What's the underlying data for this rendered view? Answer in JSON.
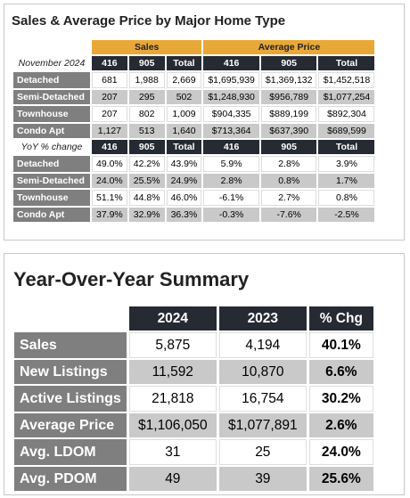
{
  "top": {
    "title": "Sales & Average Price by Major Home Type",
    "groups": [
      "Sales",
      "Average Price"
    ],
    "sections": [
      {
        "label": "November 2024",
        "columns": [
          "416",
          "905",
          "Total",
          "416",
          "905",
          "Total"
        ],
        "rows": [
          {
            "label": "Detached",
            "cells": [
              "681",
              "1,988",
              "2,669",
              "$1,695,939",
              "$1,369,132",
              "$1,452,518"
            ]
          },
          {
            "label": "Semi-Detached",
            "cells": [
              "207",
              "295",
              "502",
              "$1,248,930",
              "$956,789",
              "$1,077,254"
            ]
          },
          {
            "label": "Townhouse",
            "cells": [
              "207",
              "802",
              "1,009",
              "$904,335",
              "$889,199",
              "$892,304"
            ]
          },
          {
            "label": "Condo Apt",
            "cells": [
              "1,127",
              "513",
              "1,640",
              "$713,364",
              "$637,390",
              "$689,599"
            ]
          }
        ]
      },
      {
        "label": "YoY % change",
        "columns": [
          "416",
          "905",
          "Total",
          "416",
          "905",
          "Total"
        ],
        "rows": [
          {
            "label": "Detached",
            "cells": [
              "49.0%",
              "42.2%",
              "43.9%",
              "5.9%",
              "2.8%",
              "3.9%"
            ]
          },
          {
            "label": "Semi-Detached",
            "cells": [
              "24.0%",
              "25.5%",
              "24.9%",
              "2.8%",
              "0.8%",
              "1.7%"
            ]
          },
          {
            "label": "Townhouse",
            "cells": [
              "51.1%",
              "44.8%",
              "46.0%",
              "-6.1%",
              "2.7%",
              "0.8%"
            ]
          },
          {
            "label": "Condo Apt",
            "cells": [
              "37.9%",
              "32.9%",
              "36.3%",
              "-0.3%",
              "-7.6%",
              "-2.5%"
            ]
          }
        ]
      }
    ]
  },
  "summary": {
    "title": "Year-Over-Year Summary",
    "columns": [
      "2024",
      "2023",
      "% Chg"
    ],
    "rows": [
      {
        "label": "Sales",
        "cells": [
          "5,875",
          "4,194",
          "40.1%"
        ]
      },
      {
        "label": "New Listings",
        "cells": [
          "11,592",
          "10,870",
          "6.6%"
        ]
      },
      {
        "label": "Active Listings",
        "cells": [
          "21,818",
          "16,754",
          "30.2%"
        ]
      },
      {
        "label": "Average Price",
        "cells": [
          "$1,106,050",
          "$1,077,891",
          "2.6%"
        ]
      },
      {
        "label": "Avg. LDOM",
        "cells": [
          "31",
          "25",
          "24.0%"
        ]
      },
      {
        "label": "Avg. PDOM",
        "cells": [
          "49",
          "39",
          "25.6%"
        ]
      }
    ]
  }
}
